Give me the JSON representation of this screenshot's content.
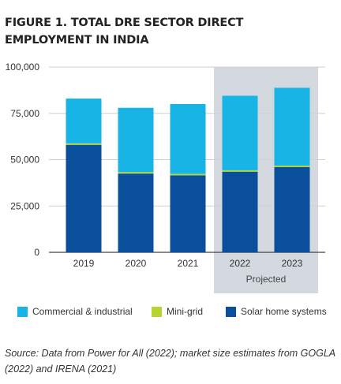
{
  "title": "FIGURE 1. TOTAL DRE SECTOR DIRECT EMPLOYMENT IN INDIA",
  "source": "Source: Data from Power for All (2022); market size estimates from GOGLA (2022) and IRENA (2021)",
  "colors": {
    "commercial": "#19b4e6",
    "minigrid": "#b6d531",
    "solar": "#0a4f9c",
    "projected_bg": "#d4d8df",
    "grid": "#cfcfcf",
    "axis": "#444444"
  },
  "chart_data": {
    "type": "bar",
    "stacked": true,
    "categories": [
      "2019",
      "2020",
      "2021",
      "2022",
      "2023"
    ],
    "series": [
      {
        "name": "Solar home systems",
        "key": "solar",
        "values": [
          58000,
          42500,
          41500,
          43500,
          46000
        ]
      },
      {
        "name": "Mini-grid",
        "key": "minigrid",
        "values": [
          800,
          800,
          800,
          800,
          800
        ]
      },
      {
        "name": "Commercial & industrial",
        "key": "commercial",
        "values": [
          24200,
          34700,
          37700,
          40200,
          42000
        ]
      }
    ],
    "ylim": [
      0,
      100000
    ],
    "yticks": [
      "0",
      "25,000",
      "50,000",
      "75,000",
      "100,000"
    ],
    "ytick_values": [
      0,
      25000,
      50000,
      75000,
      100000
    ],
    "projected_label": "Projected",
    "projected_categories": [
      "2022",
      "2023"
    ],
    "grid": true,
    "legend_position": "bottom"
  },
  "legend": [
    {
      "label": "Commercial & industrial",
      "key": "commercial"
    },
    {
      "label": "Mini-grid",
      "key": "minigrid"
    },
    {
      "label": "Solar home systems",
      "key": "solar"
    }
  ]
}
